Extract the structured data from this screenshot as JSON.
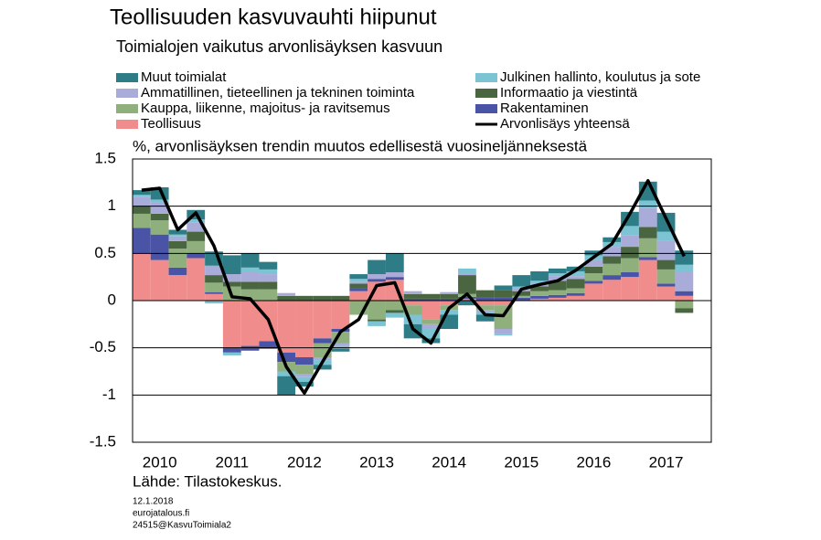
{
  "chart_data": {
    "type": "bar",
    "stacked": true,
    "title": "Teollisuuden kasvuvauhti hiipunut",
    "subtitle": "Toimialojen vaikutus arvonlisäyksen kasvuun",
    "y_label": "%, arvonlisäyksen trendin muutos edellisestä vuosineljänneksestä",
    "source": "Lähde: Tilastokeskus.",
    "footer": [
      "12.1.2018",
      "eurojatalous.fi",
      "24515@KasvuToimiala2"
    ],
    "categories": [
      "2010",
      null,
      null,
      null,
      "2011",
      null,
      null,
      null,
      "2012",
      null,
      null,
      null,
      "2013",
      null,
      null,
      null,
      "2014",
      null,
      null,
      null,
      "2015",
      null,
      null,
      null,
      "2016",
      null,
      null,
      null,
      "2017",
      null,
      null
    ],
    "ylim": [
      -1.5,
      1.5
    ],
    "yticks": [
      -1.5,
      -1,
      -0.5,
      0,
      0.5,
      1,
      1.5
    ],
    "grid": true,
    "series": [
      {
        "name": "Muut toimialat",
        "color": "#2e7d86",
        "values": [
          0.05,
          0.13,
          0.05,
          0.1,
          0.15,
          0.2,
          0.15,
          0.08,
          -0.2,
          -0.05,
          -0.05,
          -0.03,
          0.05,
          0.15,
          0.2,
          -0.15,
          -0.05,
          -0.15,
          -0.05,
          -0.07,
          0.05,
          0.12,
          0.1,
          0.05,
          0.05,
          0.05,
          0.05,
          0.15,
          0.2,
          0.2,
          0.15
        ]
      },
      {
        "name": "Julkinen hallinto, koulutus ja sote",
        "color": "#7cc4d4",
        "values": [
          0.02,
          0.03,
          0.02,
          0.03,
          -0.03,
          -0.03,
          0.05,
          0.05,
          -0.05,
          -0.05,
          -0.05,
          -0.03,
          0.03,
          -0.05,
          -0.05,
          -0.1,
          -0.1,
          -0.05,
          0.05,
          -0.03,
          -0.02,
          0.02,
          0.03,
          0.03,
          0.05,
          0.05,
          0.05,
          0.1,
          0.08,
          0.1,
          0.08
        ]
      },
      {
        "name": "Ammatillinen, tieteellinen ja tekninen toiminta",
        "color": "#a9acd8",
        "values": [
          0.1,
          0.12,
          0.05,
          0.1,
          0.1,
          0.08,
          0.1,
          0.08,
          0.03,
          -0.03,
          -0.03,
          -0.03,
          0.02,
          0.05,
          0.05,
          0.03,
          -0.05,
          0.02,
          0.02,
          -0.02,
          -0.05,
          0.03,
          0.03,
          0.05,
          0.03,
          0.07,
          0.1,
          0.12,
          0.2,
          0.2,
          0.2
        ]
      },
      {
        "name": "Informaatio ja viestintä",
        "color": "#4a6640",
        "values": [
          0.08,
          0.07,
          0.08,
          0.1,
          0.08,
          0.05,
          0.08,
          0.08,
          0.05,
          0.05,
          0.05,
          0.05,
          0.05,
          -0.02,
          -0.03,
          0.05,
          0.05,
          0.05,
          0.2,
          0.08,
          0.08,
          0.05,
          0.05,
          0.1,
          0.1,
          0.07,
          0.08,
          0.12,
          0.12,
          0.1,
          -0.05
        ]
      },
      {
        "name": "Kauppa, liikenne, majoitus- ja ravitsemus",
        "color": "#8faf7c",
        "values": [
          0.15,
          0.15,
          0.2,
          0.13,
          0.1,
          0.15,
          0.12,
          0.12,
          -0.1,
          -0.1,
          -0.15,
          -0.12,
          -0.15,
          -0.2,
          -0.1,
          -0.1,
          -0.05,
          -0.05,
          0.03,
          -0.05,
          -0.25,
          0.02,
          0.05,
          0.05,
          0.05,
          0.08,
          0.12,
          0.15,
          0.2,
          0.15,
          -0.08
        ]
      },
      {
        "name": "Rakentaminen",
        "color": "#4a54a6",
        "values": [
          0.27,
          0.27,
          0.08,
          0.05,
          0.02,
          -0.05,
          -0.05,
          -0.08,
          -0.1,
          -0.08,
          -0.05,
          -0.03,
          0.03,
          0.03,
          0.03,
          0.02,
          0.02,
          0.02,
          0.02,
          0.03,
          0.03,
          0.03,
          0.03,
          0.03,
          0.03,
          0.03,
          0.05,
          0.05,
          0.03,
          0.03,
          0.05
        ]
      },
      {
        "name": "Teollisuus",
        "color": "#f08c8c",
        "values": [
          0.5,
          0.43,
          0.27,
          0.45,
          0.07,
          -0.5,
          -0.48,
          -0.43,
          -0.55,
          -0.6,
          -0.4,
          -0.3,
          0.1,
          0.2,
          0.22,
          -0.05,
          -0.2,
          -0.05,
          0.02,
          -0.05,
          -0.05,
          0.0,
          0.02,
          0.03,
          0.05,
          0.18,
          0.22,
          0.25,
          0.43,
          0.15,
          0.05
        ]
      },
      {
        "name": "Arvonlisäys yhteensä",
        "color": "#000000",
        "type": "line",
        "values": [
          1.17,
          1.19,
          0.75,
          0.93,
          0.58,
          0.04,
          0.02,
          -0.2,
          -0.7,
          -0.98,
          -0.65,
          -0.33,
          -0.2,
          0.16,
          0.19,
          -0.3,
          -0.45,
          -0.08,
          0.07,
          -0.15,
          -0.16,
          0.12,
          0.17,
          0.21,
          0.32,
          0.46,
          0.6,
          0.92,
          1.27,
          0.87,
          0.47
        ]
      }
    ]
  }
}
